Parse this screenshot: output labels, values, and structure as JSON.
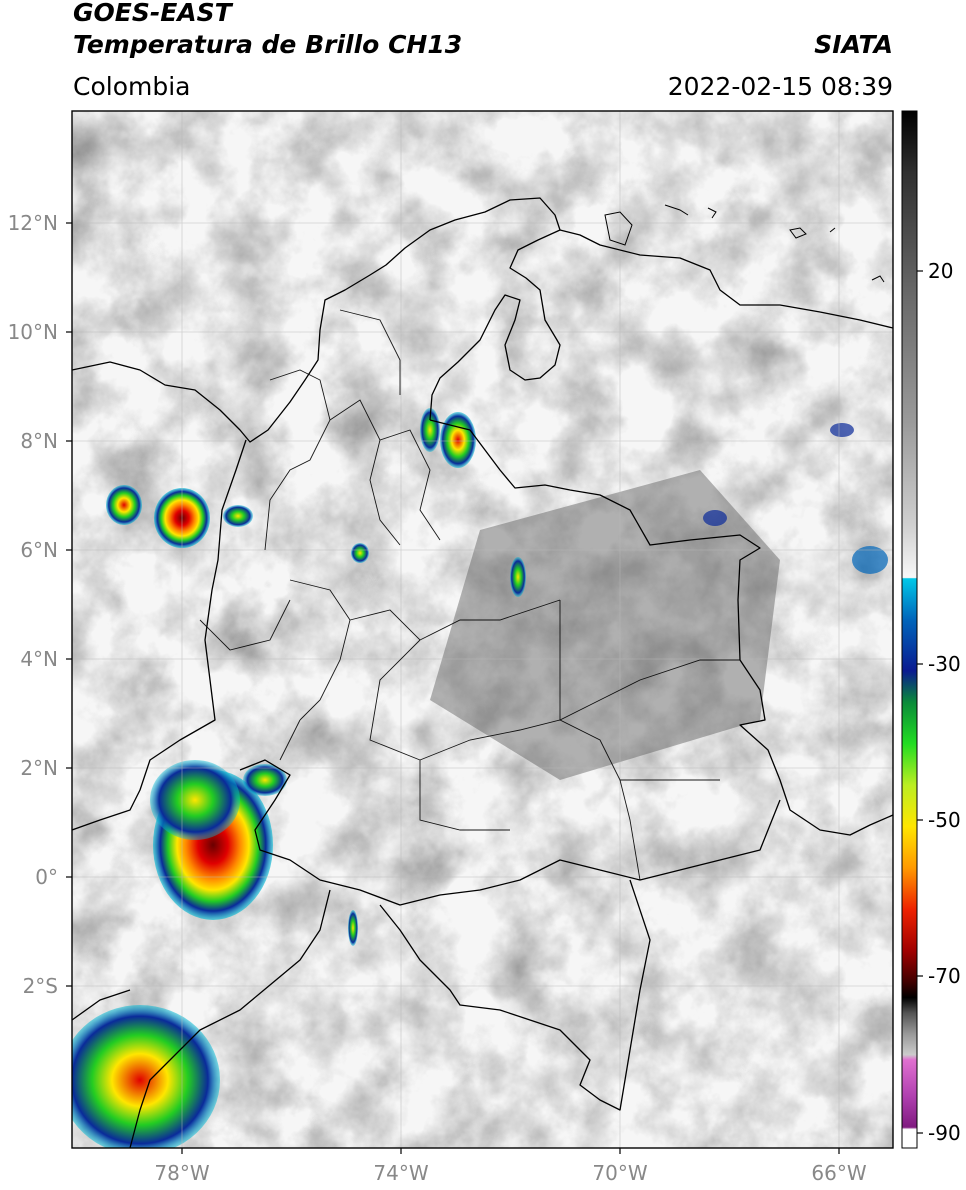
{
  "header": {
    "satellite": "GOES-EAST",
    "product": "Temperatura de Brillo CH13",
    "region": "Colombia",
    "agency": "SIATA",
    "datetime": "2022-02-15 08:39"
  },
  "map": {
    "lat_labels": [
      "12°N",
      "10°N",
      "8°N",
      "6°N",
      "4°N",
      "2°N",
      "0°",
      "2°S"
    ],
    "lon_labels": [
      "78°W",
      "74°W",
      "70°W",
      "66°W"
    ],
    "background": "grayscale infrared cloud-top brightness temperature",
    "features": [
      "colombia-departments",
      "country-borders",
      "coastline",
      "graticule"
    ]
  },
  "colorbar": {
    "tick_labels": [
      "20",
      "-30",
      "-50",
      "-70",
      "-90"
    ],
    "colors": {
      "warm_gray": "#7a7a7a",
      "light": "#e8e8e8",
      "cyan": "#00bcd4",
      "blue": "#0a2a9a",
      "green": "#22cc22",
      "yellow": "#ffe600",
      "orange": "#ff8800",
      "red": "#e00000",
      "dark_red": "#6a0000",
      "black": "#000000",
      "pink": "#e050c0",
      "purple": "#8a1a8a"
    }
  }
}
